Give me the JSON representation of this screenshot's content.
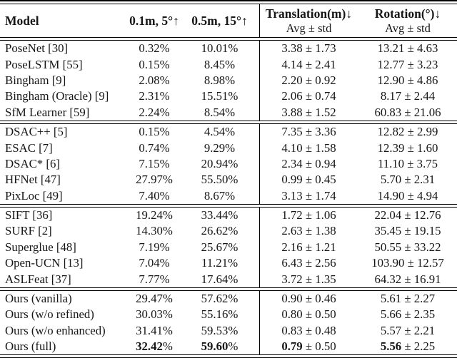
{
  "table": {
    "header": {
      "model": "Model",
      "acc_01m": "0.1m, 5°↑",
      "acc_05m": "0.5m, 15°↑",
      "translation": "Translation(m)↓",
      "rotation": "Rotation(°)↓",
      "avg_std": "Avg ± std"
    },
    "groups": [
      {
        "rows": [
          {
            "model": "PoseNet [30]",
            "acc1": "0.32%",
            "acc2": "10.01%",
            "trans": "3.38 ± 1.73",
            "rot": "13.21 ± 4.63"
          },
          {
            "model": "PoseLSTM [55]",
            "acc1": "0.15%",
            "acc2": "8.45%",
            "trans": "4.14 ± 2.41",
            "rot": "12.77 ± 3.23"
          },
          {
            "model": "Bingham [9]",
            "acc1": "2.08%",
            "acc2": "8.98%",
            "trans": "2.20 ± 0.92",
            "rot": "12.90 ± 4.86"
          },
          {
            "model": "Bingham (Oracle) [9]",
            "acc1": "2.31%",
            "acc2": "15.51%",
            "trans": "2.06 ± 0.74",
            "rot": "8.17 ± 2.44"
          },
          {
            "model": "SfM Learner [59]",
            "acc1": "2.24%",
            "acc2": "8.54%",
            "trans": "3.88 ± 1.52",
            "rot": "60.83 ± 21.06"
          }
        ]
      },
      {
        "rows": [
          {
            "model": "DSAC++ [5]",
            "acc1": "0.15%",
            "acc2": "4.54%",
            "trans": "7.35 ± 3.36",
            "rot": "12.82 ± 2.99"
          },
          {
            "model": "ESAC [7]",
            "acc1": "0.74%",
            "acc2": "9.29%",
            "trans": "4.10 ± 1.58",
            "rot": "12.39 ± 1.60"
          },
          {
            "model": "DSAC* [6]",
            "acc1": "7.15%",
            "acc2": "20.94%",
            "trans": "2.34 ± 0.94",
            "rot": "11.10 ± 3.75"
          },
          {
            "model": "HFNet [47]",
            "acc1": "27.97%",
            "acc2": "55.50%",
            "trans": "0.99 ± 0.45",
            "rot": "5.70 ± 2.31"
          },
          {
            "model": "PixLoc [49]",
            "acc1": "7.40%",
            "acc2": "8.67%",
            "trans": "3.13 ± 1.74",
            "rot": "14.90 ± 4.94"
          }
        ]
      },
      {
        "rows": [
          {
            "model": "SIFT [36]",
            "acc1": "19.24%",
            "acc2": "33.44%",
            "trans": "1.72 ± 1.06",
            "rot": "22.04 ± 12.76"
          },
          {
            "model": "SURF [2]",
            "acc1": "14.30%",
            "acc2": "26.62%",
            "trans": "2.63 ± 1.38",
            "rot": "35.45 ± 19.15"
          },
          {
            "model": "Superglue [48]",
            "acc1": "7.19%",
            "acc2": "25.67%",
            "trans": "2.16 ± 1.21",
            "rot": "50.55 ± 33.22"
          },
          {
            "model": "Open-UCN [13]",
            "acc1": "7.04%",
            "acc2": "11.21%",
            "trans": "6.43 ± 2.56",
            "rot": "103.90 ± 12.57"
          },
          {
            "model": "ASLFeat [37]",
            "acc1": "7.77%",
            "acc2": "17.64%",
            "trans": "3.72 ± 1.35",
            "rot": "64.32 ± 16.91"
          }
        ]
      },
      {
        "rows": [
          {
            "model": "Ours (vanilla)",
            "acc1": "29.47%",
            "acc2": "57.62%",
            "trans": "0.90 ± 0.46",
            "rot": "5.61 ± 2.27"
          },
          {
            "model": "Ours (w/o refined)",
            "acc1": "30.03%",
            "acc2": "55.16%",
            "trans": "0.80 ± 0.50",
            "rot": "5.66 ± 2.35"
          },
          {
            "model": "Ours (w/o enhanced)",
            "acc1": "31.41%",
            "acc2": "59.53%",
            "trans": "0.83 ± 0.48",
            "rot": "5.57 ± 2.21"
          },
          {
            "model": "Ours (full)",
            "acc1_bold": "32.42",
            "acc1_rest": "%",
            "acc2_bold": "59.60",
            "acc2_rest": "%",
            "trans_bold": "0.79",
            "trans_rest": " ± 0.50",
            "rot_bold": "5.56",
            "rot_rest": " ± 2.25"
          }
        ]
      }
    ]
  }
}
